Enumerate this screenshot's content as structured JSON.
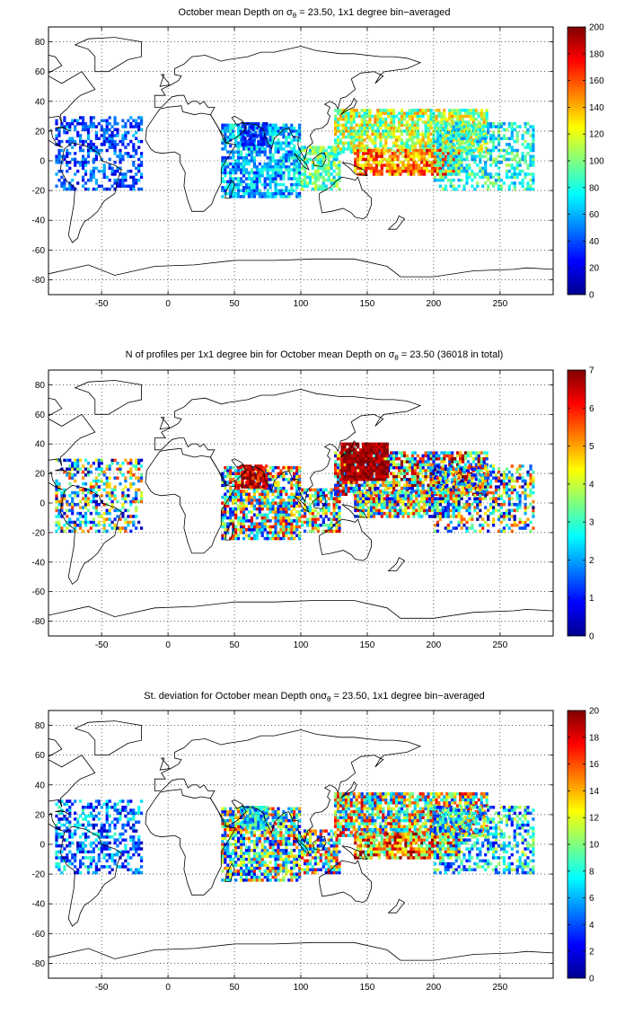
{
  "figure": {
    "panels": [
      {
        "title_pre": "October mean Depth on ",
        "title_sigma": "σ",
        "title_sub": "θ",
        "title_post": " = 23.50, 1x1 degree bin−averaged"
      },
      {
        "title_pre": "N of profiles per 1x1 degree bin for October mean Depth on ",
        "title_sigma": "σ",
        "title_sub": "θ",
        "title_post": " = 23.50 (36018 in total)"
      },
      {
        "title_pre": "St. deviation for October mean Depth on",
        "title_sigma": "σ",
        "title_sub": "θ",
        "title_post": " = 23.50, 1x1 degree bin−averaged"
      }
    ]
  },
  "chart_data": [
    {
      "type": "heatmap",
      "title": "October mean Depth on σθ = 23.50, 1x1 degree bin−averaged",
      "xlim": [
        -90,
        290
      ],
      "ylim": [
        -90,
        90
      ],
      "xticks": [
        -50,
        0,
        50,
        100,
        150,
        200,
        250
      ],
      "yticks": [
        -80,
        -60,
        -40,
        -20,
        0,
        20,
        40,
        60,
        80
      ],
      "colorbar": {
        "min": 0,
        "max": 200,
        "ticks": [
          0,
          20,
          40,
          60,
          80,
          100,
          120,
          140,
          160,
          180,
          200
        ]
      },
      "colormap": "jet",
      "grid": true,
      "regions": [
        {
          "lon": [
            -85,
            -20
          ],
          "lat": [
            -20,
            30
          ],
          "value": 40,
          "spread": 25,
          "density": 0.45
        },
        {
          "lon": [
            40,
            100
          ],
          "lat": [
            -25,
            25
          ],
          "value": 60,
          "spread": 30,
          "density": 0.75
        },
        {
          "lon": [
            55,
            75
          ],
          "lat": [
            10,
            25
          ],
          "value": 30,
          "spread": 15,
          "density": 0.85
        },
        {
          "lon": [
            100,
            130
          ],
          "lat": [
            -20,
            10
          ],
          "value": 90,
          "spread": 30,
          "density": 0.7
        },
        {
          "lon": [
            125,
            240
          ],
          "lat": [
            5,
            35
          ],
          "value": 110,
          "spread": 40,
          "density": 0.8
        },
        {
          "lon": [
            140,
            220
          ],
          "lat": [
            -10,
            8
          ],
          "value": 150,
          "spread": 35,
          "density": 0.85
        },
        {
          "lon": [
            200,
            275
          ],
          "lat": [
            -20,
            25
          ],
          "value": 80,
          "spread": 30,
          "density": 0.5
        }
      ]
    },
    {
      "type": "heatmap",
      "title": "N of profiles per 1x1 degree bin for October mean Depth on σθ = 23.50 (36018 in total)",
      "xlim": [
        -90,
        290
      ],
      "ylim": [
        -90,
        90
      ],
      "xticks": [
        -50,
        0,
        50,
        100,
        150,
        200,
        250
      ],
      "yticks": [
        -80,
        -60,
        -40,
        -20,
        0,
        20,
        40,
        60,
        80
      ],
      "colorbar": {
        "min": 0,
        "max": 7,
        "ticks": [
          0,
          1,
          2,
          3,
          4,
          5,
          6,
          7
        ]
      },
      "colormap": "jet",
      "grid": true,
      "total_profiles": 36018,
      "regions": [
        {
          "lon": [
            -85,
            -20
          ],
          "lat": [
            -20,
            30
          ],
          "value": 3,
          "spread": 3,
          "density": 0.45
        },
        {
          "lon": [
            40,
            100
          ],
          "lat": [
            -25,
            25
          ],
          "value": 3.5,
          "spread": 3,
          "density": 0.75
        },
        {
          "lon": [
            55,
            75
          ],
          "lat": [
            10,
            25
          ],
          "value": 6.5,
          "spread": 1,
          "density": 0.85
        },
        {
          "lon": [
            100,
            130
          ],
          "lat": [
            -20,
            10
          ],
          "value": 3.5,
          "spread": 3,
          "density": 0.7
        },
        {
          "lon": [
            125,
            240
          ],
          "lat": [
            5,
            35
          ],
          "value": 4,
          "spread": 3.5,
          "density": 0.8
        },
        {
          "lon": [
            130,
            165
          ],
          "lat": [
            15,
            40
          ],
          "value": 6.8,
          "spread": 0.5,
          "density": 0.9
        },
        {
          "lon": [
            140,
            220
          ],
          "lat": [
            -10,
            8
          ],
          "value": 3.5,
          "spread": 3,
          "density": 0.85
        },
        {
          "lon": [
            200,
            275
          ],
          "lat": [
            -20,
            25
          ],
          "value": 3,
          "spread": 3,
          "density": 0.5
        }
      ]
    },
    {
      "type": "heatmap",
      "title": "St. deviation for October mean Depth onσθ = 23.50, 1x1 degree bin−averaged",
      "xlim": [
        -90,
        290
      ],
      "ylim": [
        -90,
        90
      ],
      "xticks": [
        -50,
        0,
        50,
        100,
        150,
        200,
        250
      ],
      "yticks": [
        -80,
        -60,
        -40,
        -20,
        0,
        20,
        40,
        60,
        80
      ],
      "colorbar": {
        "min": 0,
        "max": 20,
        "ticks": [
          0,
          2,
          4,
          6,
          8,
          10,
          12,
          14,
          16,
          18,
          20
        ]
      },
      "colormap": "jet",
      "grid": true,
      "regions": [
        {
          "lon": [
            -85,
            -20
          ],
          "lat": [
            -20,
            30
          ],
          "value": 5,
          "spread": 4,
          "density": 0.45
        },
        {
          "lon": [
            40,
            100
          ],
          "lat": [
            -25,
            25
          ],
          "value": 9,
          "spread": 8,
          "density": 0.75
        },
        {
          "lon": [
            55,
            75
          ],
          "lat": [
            10,
            25
          ],
          "value": 7,
          "spread": 4,
          "density": 0.85
        },
        {
          "lon": [
            100,
            130
          ],
          "lat": [
            -20,
            10
          ],
          "value": 10,
          "spread": 8,
          "density": 0.7
        },
        {
          "lon": [
            125,
            240
          ],
          "lat": [
            5,
            35
          ],
          "value": 11,
          "spread": 8,
          "density": 0.8
        },
        {
          "lon": [
            140,
            220
          ],
          "lat": [
            -10,
            8
          ],
          "value": 14,
          "spread": 6,
          "density": 0.85
        },
        {
          "lon": [
            200,
            275
          ],
          "lat": [
            -20,
            25
          ],
          "value": 7,
          "spread": 5,
          "density": 0.5
        }
      ]
    }
  ]
}
